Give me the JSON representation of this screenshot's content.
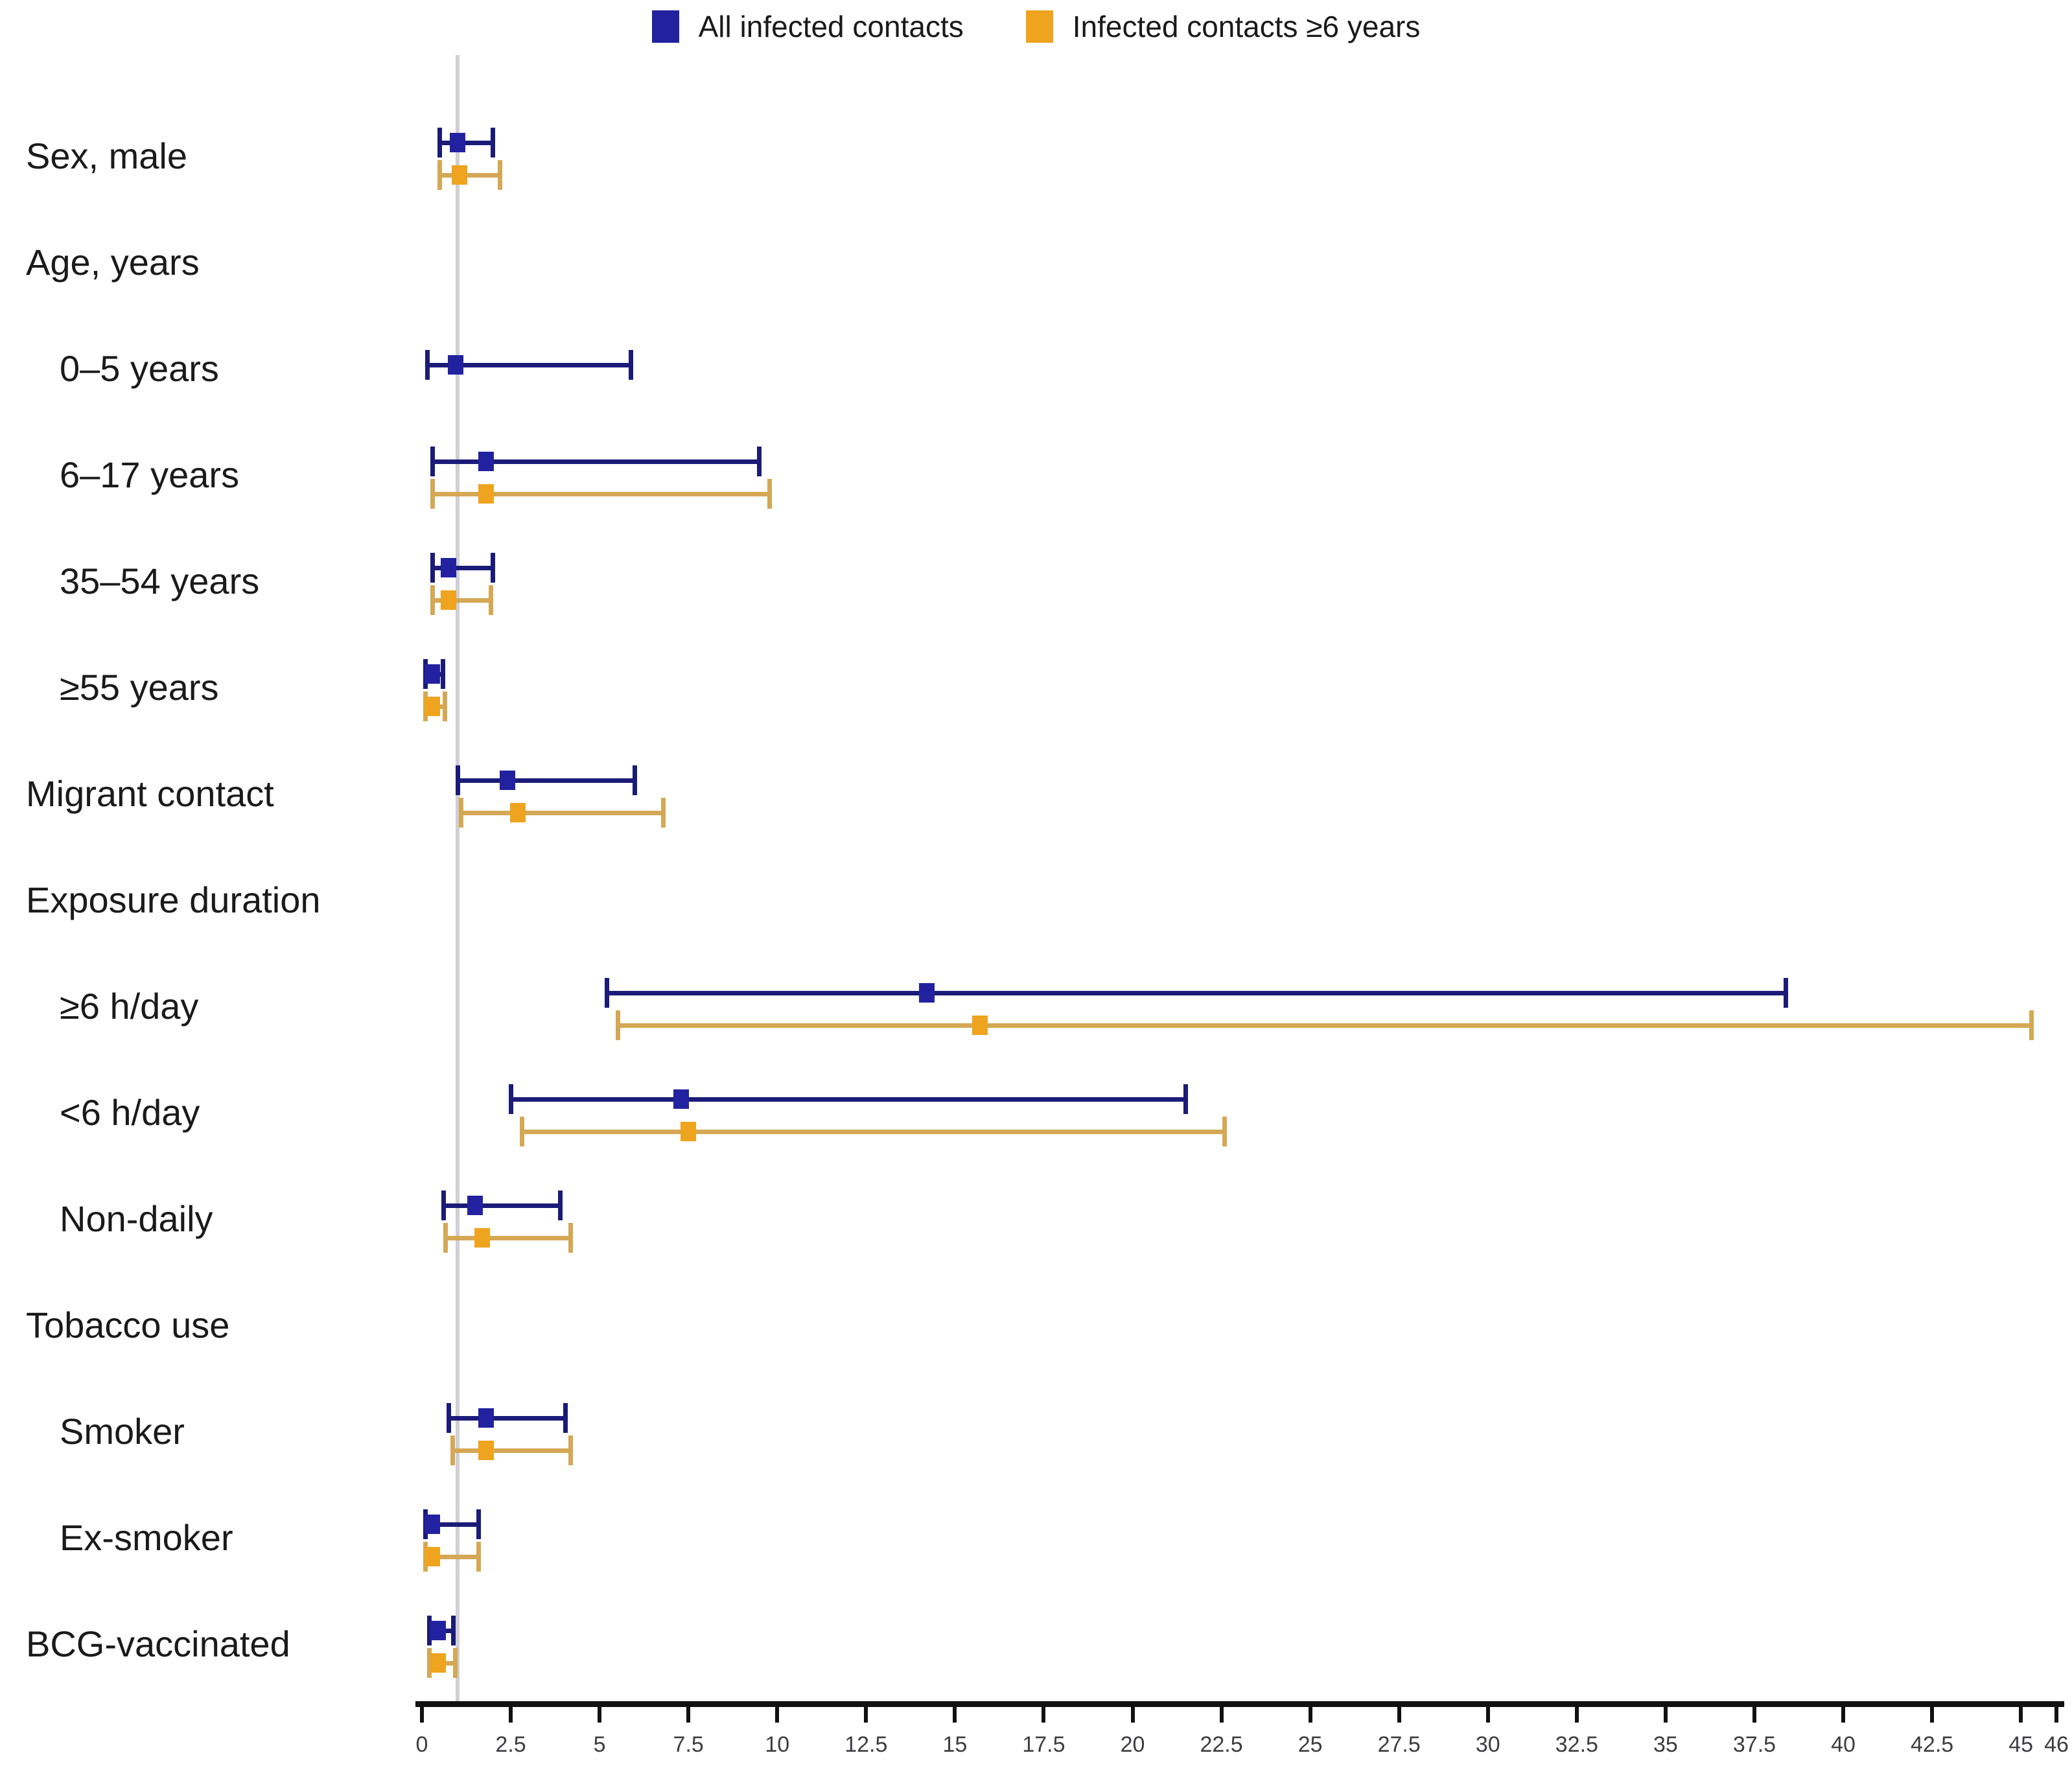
{
  "legend": [
    {
      "label": "All infected contacts",
      "color": "#2222a0"
    },
    {
      "label": "Infected contacts ≥6 years",
      "color": "#efa41f"
    }
  ],
  "chart_data": {
    "type": "scatter",
    "subtype": "forest-plot-odds-ratios-with-95ci",
    "title": "",
    "xlabel": "",
    "ylabel": "",
    "xlim": [
      0,
      46
    ],
    "x_ticks": [
      0,
      2.5,
      5,
      7.5,
      10,
      12.5,
      15,
      17.5,
      20,
      22.5,
      25,
      27.5,
      30,
      32.5,
      35,
      37.5,
      40,
      42.5,
      45,
      46
    ],
    "grid": false,
    "legend_position": "top-center",
    "reference_line_x": 1,
    "series_names": [
      "All infected contacts",
      "Infected contacts ≥6 years"
    ],
    "colors": {
      "series1": {
        "marker": "#2222a0",
        "line": "#1b1b78"
      },
      "series2": {
        "marker": "#efa41f",
        "line": "#d5a855"
      },
      "reference_line": "#cfcfd4",
      "axis": "#111111",
      "label_text": "#1a1a1a",
      "tick_text": "#3d3d42"
    },
    "rows": [
      {
        "label": "Sex, male",
        "indent": 0,
        "header": false,
        "estimates": [
          {
            "or": 1.0,
            "lo": 0.5,
            "hi": 2.0
          },
          {
            "or": 1.05,
            "lo": 0.5,
            "hi": 2.2
          }
        ]
      },
      {
        "label": "Age, years",
        "indent": 0,
        "header": true,
        "estimates": [
          null,
          null
        ]
      },
      {
        "label": "0–5 years",
        "indent": 1,
        "header": false,
        "estimates": [
          {
            "or": 0.95,
            "lo": 0.15,
            "hi": 5.9
          },
          null
        ]
      },
      {
        "label": "6–17 years",
        "indent": 1,
        "header": false,
        "estimates": [
          {
            "or": 1.8,
            "lo": 0.3,
            "hi": 9.5
          },
          {
            "or": 1.8,
            "lo": 0.3,
            "hi": 9.8
          }
        ]
      },
      {
        "label": "35–54 years",
        "indent": 1,
        "header": false,
        "estimates": [
          {
            "or": 0.75,
            "lo": 0.3,
            "hi": 2.0
          },
          {
            "or": 0.75,
            "lo": 0.3,
            "hi": 1.95
          }
        ]
      },
      {
        "label": "≥55 years",
        "indent": 1,
        "header": false,
        "estimates": [
          {
            "or": 0.3,
            "lo": 0.1,
            "hi": 0.6
          },
          {
            "or": 0.3,
            "lo": 0.1,
            "hi": 0.65
          }
        ]
      },
      {
        "label": "Migrant contact",
        "indent": 0,
        "header": false,
        "estimates": [
          {
            "or": 2.4,
            "lo": 1.0,
            "hi": 6.0
          },
          {
            "or": 2.7,
            "lo": 1.1,
            "hi": 6.8
          }
        ]
      },
      {
        "label": "Exposure duration",
        "indent": 0,
        "header": true,
        "estimates": [
          null,
          null
        ]
      },
      {
        "label": "≥6 h/day",
        "indent": 1,
        "header": false,
        "estimates": [
          {
            "or": 14.2,
            "lo": 5.2,
            "hi": 38.4
          },
          {
            "or": 15.7,
            "lo": 5.5,
            "hi": 45.3
          }
        ]
      },
      {
        "label": "<6 h/day",
        "indent": 1,
        "header": false,
        "estimates": [
          {
            "or": 7.3,
            "lo": 2.5,
            "hi": 21.5
          },
          {
            "or": 7.5,
            "lo": 2.8,
            "hi": 22.6
          }
        ]
      },
      {
        "label": "Non-daily",
        "indent": 1,
        "header": false,
        "estimates": [
          {
            "or": 1.5,
            "lo": 0.6,
            "hi": 3.9
          },
          {
            "or": 1.7,
            "lo": 0.65,
            "hi": 4.2
          }
        ]
      },
      {
        "label": "Tobacco use",
        "indent": 0,
        "header": true,
        "estimates": [
          null,
          null
        ]
      },
      {
        "label": "Smoker",
        "indent": 1,
        "header": false,
        "estimates": [
          {
            "or": 1.8,
            "lo": 0.75,
            "hi": 4.05
          },
          {
            "or": 1.8,
            "lo": 0.85,
            "hi": 4.2
          }
        ]
      },
      {
        "label": "Ex-smoker",
        "indent": 1,
        "header": false,
        "estimates": [
          {
            "or": 0.3,
            "lo": 0.1,
            "hi": 1.6
          },
          {
            "or": 0.3,
            "lo": 0.1,
            "hi": 1.6
          }
        ]
      },
      {
        "label": "BCG-vaccinated",
        "indent": 0,
        "header": false,
        "estimates": [
          {
            "or": 0.45,
            "lo": 0.2,
            "hi": 0.9
          },
          {
            "or": 0.45,
            "lo": 0.2,
            "hi": 0.95
          }
        ]
      }
    ]
  }
}
